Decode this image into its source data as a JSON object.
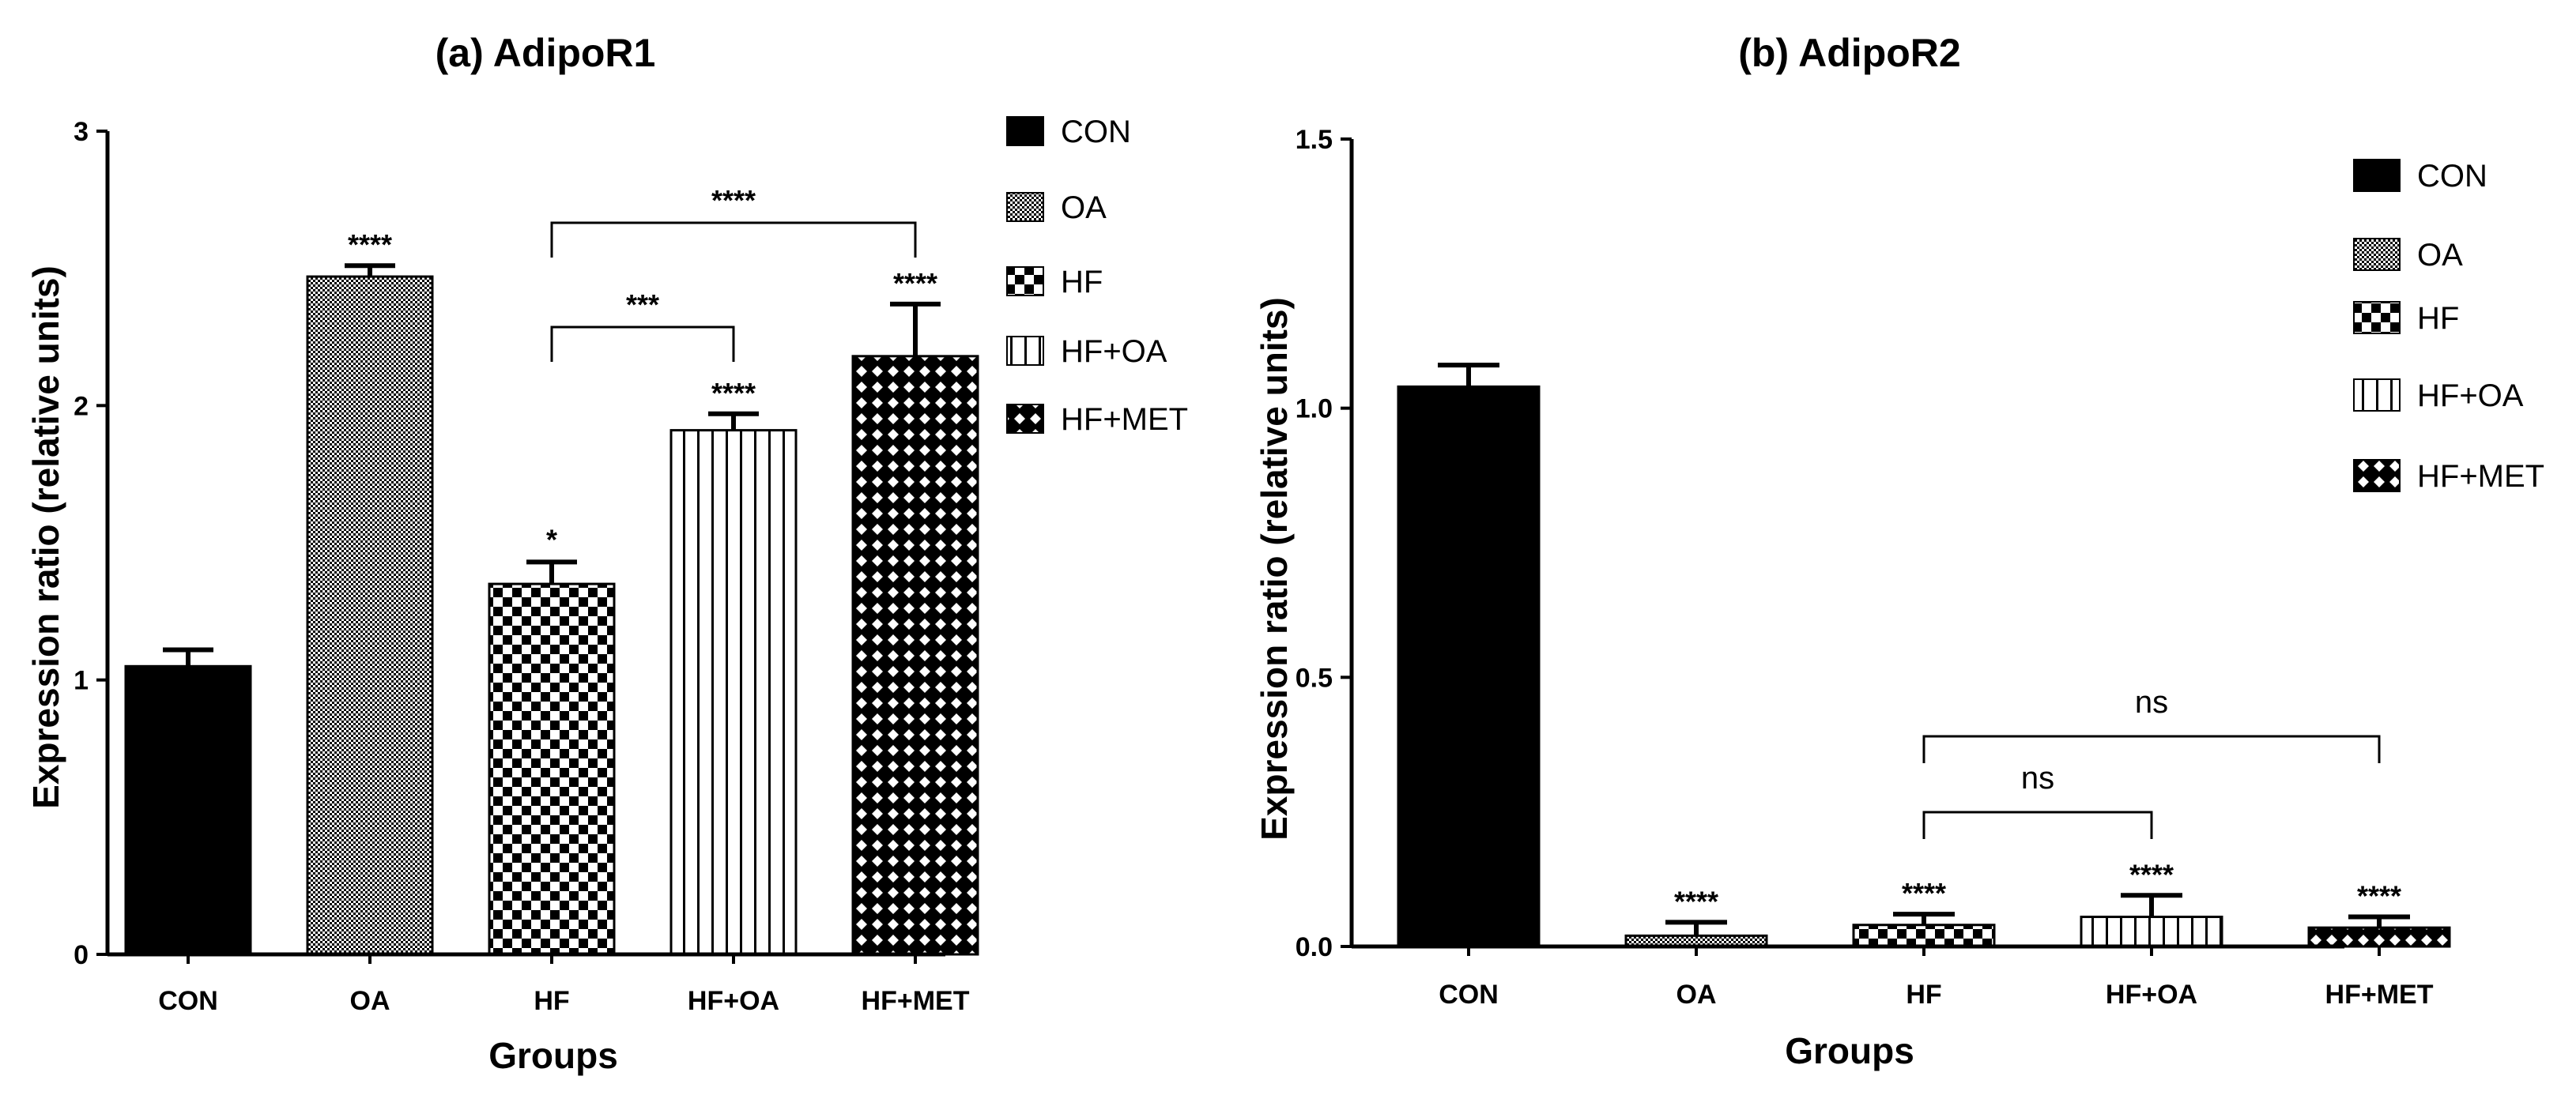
{
  "chart_data": [
    {
      "type": "bar",
      "title": "(a) AdipoR1",
      "xlabel": "Groups",
      "ylabel": "Expression ratio (relative units)",
      "ylim": [
        0,
        3
      ],
      "yticks": [
        0,
        1,
        2,
        3
      ],
      "categories": [
        "CON",
        "OA",
        "HF",
        "HF+OA",
        "HF+MET"
      ],
      "values": [
        1.05,
        2.47,
        1.35,
        1.91,
        2.18
      ],
      "errors": [
        0.06,
        0.04,
        0.08,
        0.06,
        0.19
      ],
      "significance": [
        "",
        "****",
        "*",
        "****",
        "****"
      ],
      "brackets": [
        {
          "from": "HF",
          "to": "HF+OA",
          "label": "***"
        },
        {
          "from": "HF",
          "to": "HF+MET",
          "label": "****"
        }
      ],
      "legend": [
        "CON",
        "OA",
        "HF",
        "HF+OA",
        "HF+MET"
      ]
    },
    {
      "type": "bar",
      "title": "(b) AdipoR2",
      "xlabel": "Groups",
      "ylabel": "Expression ratio (relative units)",
      "ylim": [
        0,
        1.5
      ],
      "yticks": [
        "0.0",
        "0.5",
        "1.0",
        "1.5"
      ],
      "categories": [
        "CON",
        "OA",
        "HF",
        "HF+OA",
        "HF+MET"
      ],
      "values": [
        1.04,
        0.02,
        0.04,
        0.055,
        0.035
      ],
      "errors": [
        0.04,
        0.025,
        0.02,
        0.04,
        0.02
      ],
      "significance": [
        "",
        "****",
        "****",
        "****",
        "****"
      ],
      "brackets": [
        {
          "from": "HF",
          "to": "HF+OA",
          "label": "ns"
        },
        {
          "from": "HF",
          "to": "HF+MET",
          "label": "ns"
        }
      ],
      "legend": [
        "CON",
        "OA",
        "HF",
        "HF+OA",
        "HF+MET"
      ]
    }
  ]
}
